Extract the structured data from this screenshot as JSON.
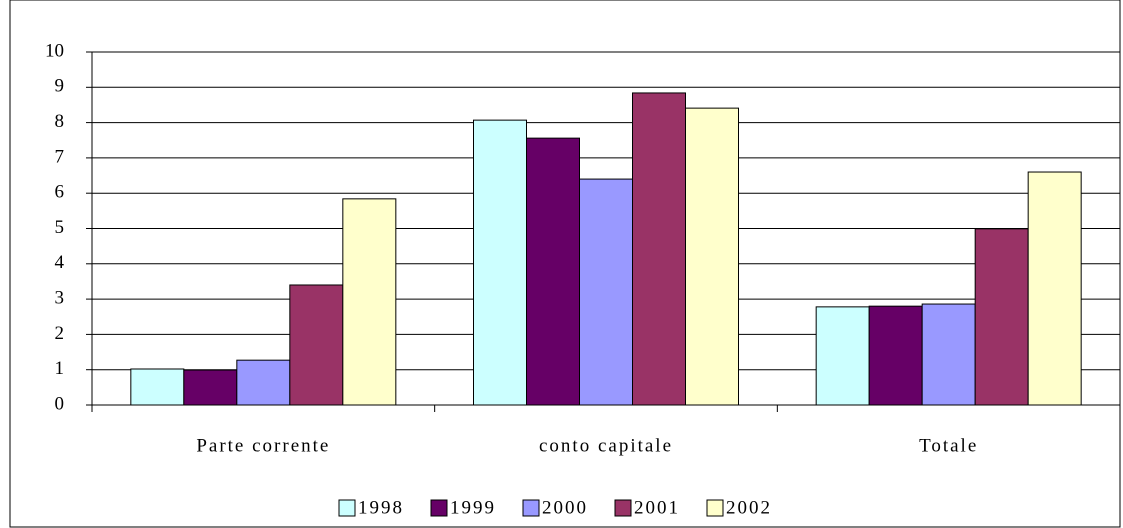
{
  "chart_data": {
    "type": "bar",
    "categories": [
      "Parte corrente",
      "conto capitale",
      "Totale"
    ],
    "series": [
      {
        "name": "1998",
        "color": "#ccffff",
        "values": [
          1.02,
          8.07,
          2.78
        ]
      },
      {
        "name": "1999",
        "color": "#660066",
        "values": [
          0.99,
          7.56,
          2.8
        ]
      },
      {
        "name": "2000",
        "color": "#9999ff",
        "values": [
          1.27,
          6.4,
          2.86
        ]
      },
      {
        "name": "2001",
        "color": "#993366",
        "values": [
          3.4,
          8.84,
          4.99
        ]
      },
      {
        "name": "2002",
        "color": "#ffffcc",
        "values": [
          5.84,
          8.41,
          6.6
        ]
      }
    ],
    "ylim": [
      0,
      10
    ],
    "yticks": [
      0,
      1,
      2,
      3,
      4,
      5,
      6,
      7,
      8,
      9,
      10
    ],
    "grid": true,
    "legend": "bottom"
  }
}
